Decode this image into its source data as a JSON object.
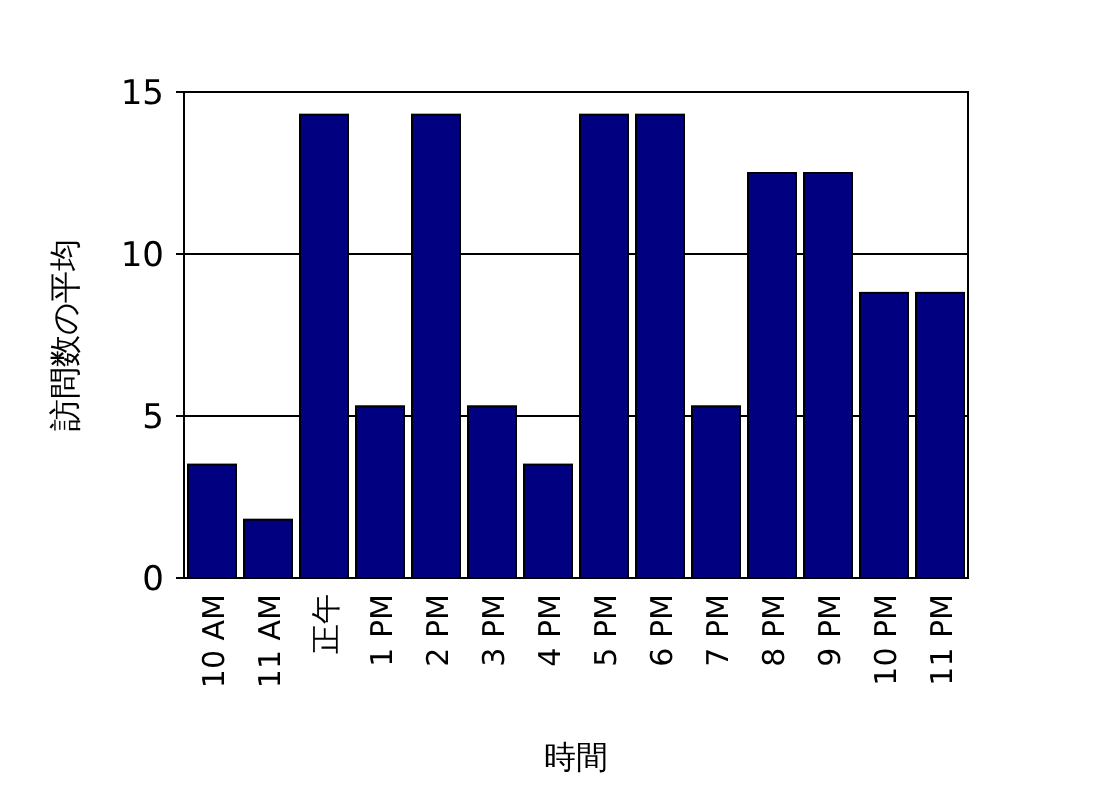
{
  "chart_data": {
    "type": "bar",
    "xlabel": "時間",
    "ylabel": "訪問数の平均",
    "categories": [
      "10 AM",
      "11 AM",
      "正午",
      "1 PM",
      "2 PM",
      "3 PM",
      "4 PM",
      "5 PM",
      "6 PM",
      "7 PM",
      "8 PM",
      "9 PM",
      "10 PM",
      "11 PM"
    ],
    "series": [
      {
        "color": "#000080",
        "values": [
          3.5,
          1.8,
          14.3,
          5.3,
          14.3,
          5.3,
          3.5,
          14.3,
          14.3,
          5.3,
          12.5,
          12.5,
          8.8,
          8.8
        ]
      }
    ],
    "ylim": [
      0,
      15
    ],
    "yticks": [
      0,
      5,
      10,
      15
    ],
    "grid": "y"
  }
}
